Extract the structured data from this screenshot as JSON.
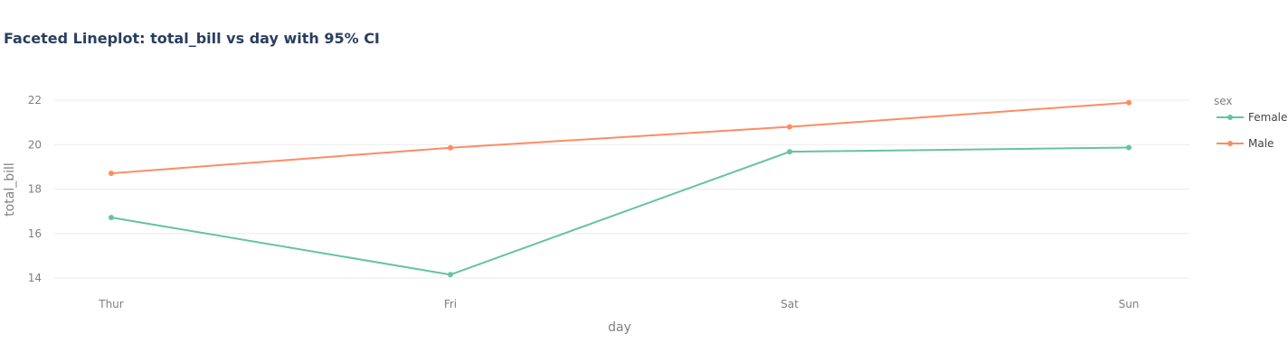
{
  "chart_data": {
    "type": "line",
    "title": "Faceted Lineplot: total_bill vs day with 95% CI",
    "xlabel": "day",
    "ylabel": "total_bill",
    "categories": [
      "Thur",
      "Fri",
      "Sat",
      "Sun"
    ],
    "ylim": [
      13.5,
      22.8
    ],
    "yticks": [
      14,
      16,
      18,
      20,
      22
    ],
    "grid": true,
    "legend": {
      "title": "sex",
      "placement": "right"
    },
    "series": [
      {
        "name": "Female",
        "color": "#66c2a5",
        "values": [
          16.72,
          14.15,
          19.68,
          19.87
        ]
      },
      {
        "name": "Male",
        "color": "#fc8d62",
        "values": [
          18.71,
          19.86,
          20.8,
          21.89
        ]
      }
    ]
  }
}
